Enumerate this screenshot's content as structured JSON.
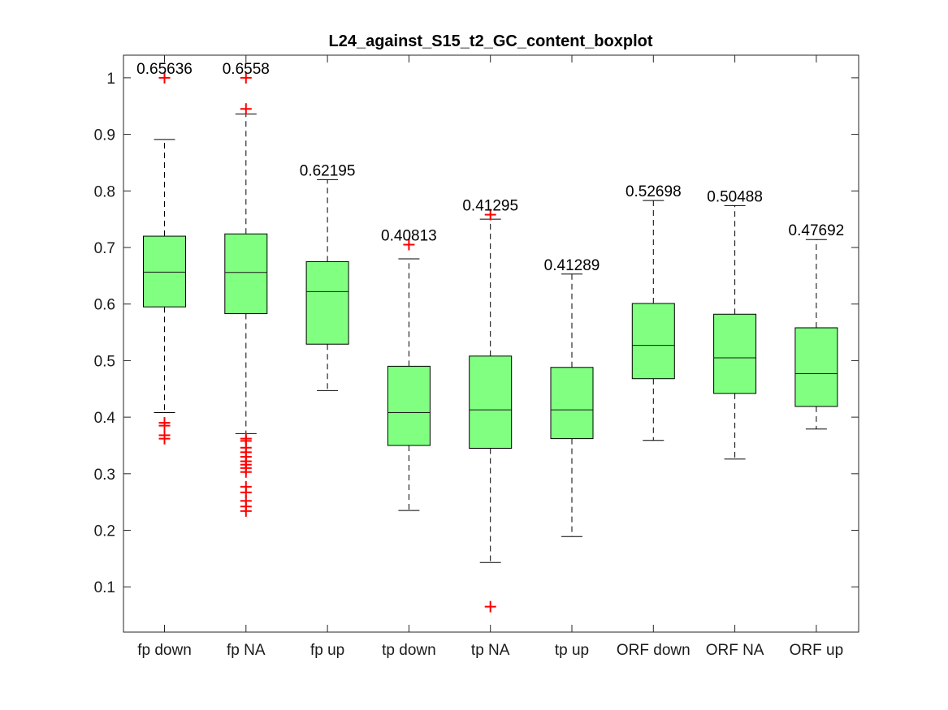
{
  "chart_data": {
    "type": "boxplot",
    "title": "L24_against_S15_t2_GC_content_boxplot",
    "xlabel": "",
    "ylabel": "",
    "ylim": [
      0.02,
      1.04
    ],
    "y_ticks": [
      0.1,
      0.2,
      0.3,
      0.4,
      0.5,
      0.6,
      0.7,
      0.8,
      0.9,
      1
    ],
    "y_tick_labels": [
      "0.1",
      "0.2",
      "0.3",
      "0.4",
      "0.5",
      "0.6",
      "0.7",
      "0.8",
      "0.9",
      "1"
    ],
    "grid": false,
    "colors": {
      "box_fill": "#80ff80",
      "outlier": "#ff0000",
      "whisker": "#000000"
    },
    "categories": [
      "fp down",
      "fp NA",
      "fp up",
      "tp down",
      "tp NA",
      "tp up",
      "ORF down",
      "ORF NA",
      "ORF up"
    ],
    "boxes": [
      {
        "q1": 0.595,
        "median": 0.65636,
        "q3": 0.72,
        "whisker_low": 0.408,
        "whisker_high": 0.891,
        "outliers": [
          1.0,
          0.39,
          0.385,
          0.368,
          0.362
        ],
        "median_label": "0.65636"
      },
      {
        "q1": 0.583,
        "median": 0.6558,
        "q3": 0.724,
        "whisker_low": 0.371,
        "whisker_high": 0.936,
        "outliers": [
          1.0,
          0.945,
          0.362,
          0.358,
          0.346,
          0.338,
          0.33,
          0.322,
          0.316,
          0.31,
          0.303,
          0.277,
          0.267,
          0.252,
          0.242,
          0.234
        ],
        "median_label": "0.6558"
      },
      {
        "q1": 0.529,
        "median": 0.62195,
        "q3": 0.675,
        "whisker_low": 0.447,
        "whisker_high": 0.82,
        "outliers": [],
        "median_label": "0.62195"
      },
      {
        "q1": 0.35,
        "median": 0.40813,
        "q3": 0.49,
        "whisker_low": 0.235,
        "whisker_high": 0.68,
        "outliers": [
          0.705
        ],
        "median_label": "0.40813"
      },
      {
        "q1": 0.345,
        "median": 0.41295,
        "q3": 0.508,
        "whisker_low": 0.143,
        "whisker_high": 0.75,
        "outliers": [
          0.758,
          0.065
        ],
        "median_label": "0.41295"
      },
      {
        "q1": 0.362,
        "median": 0.41289,
        "q3": 0.488,
        "whisker_low": 0.189,
        "whisker_high": 0.653,
        "outliers": [],
        "median_label": "0.41289"
      },
      {
        "q1": 0.468,
        "median": 0.52698,
        "q3": 0.601,
        "whisker_low": 0.359,
        "whisker_high": 0.783,
        "outliers": [],
        "median_label": "0.52698"
      },
      {
        "q1": 0.442,
        "median": 0.50488,
        "q3": 0.582,
        "whisker_low": 0.326,
        "whisker_high": 0.774,
        "outliers": [],
        "median_label": "0.50488"
      },
      {
        "q1": 0.419,
        "median": 0.47692,
        "q3": 0.558,
        "whisker_low": 0.379,
        "whisker_high": 0.714,
        "outliers": [],
        "median_label": "0.47692"
      }
    ]
  }
}
